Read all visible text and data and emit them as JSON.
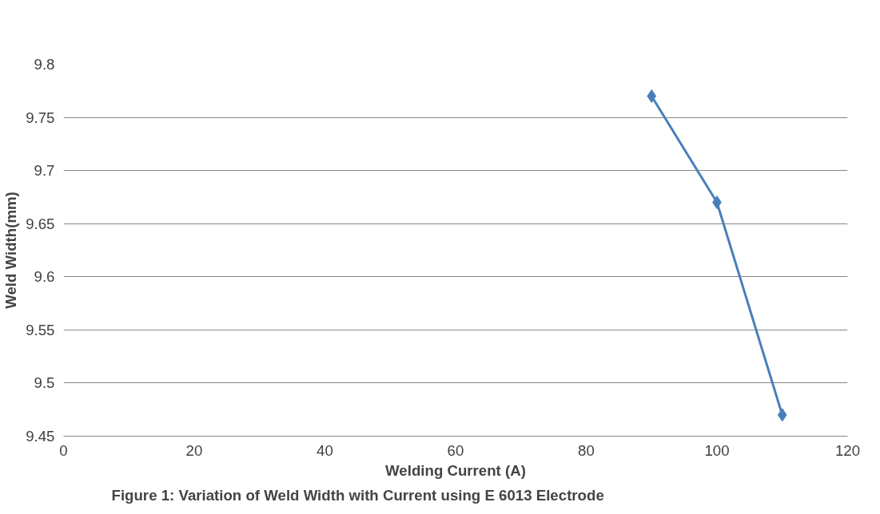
{
  "chart_data": {
    "type": "line",
    "xlabel": "Welding Current (A)",
    "ylabel": "Weld Width(mm)",
    "annotations": [
      "Figure 1:  Variation of Weld Width with Current using E 6013 Electrode"
    ],
    "x": [
      90,
      100,
      110
    ],
    "series": [
      {
        "color": "#4a7ebb",
        "values": [
          9.77,
          9.67,
          9.47
        ]
      }
    ],
    "xlim": [
      0,
      120
    ],
    "xticks": [
      0,
      20,
      40,
      60,
      80,
      100,
      120
    ],
    "ylim": [
      9.45,
      9.8
    ],
    "yticks": [
      9.45,
      9.5,
      9.55,
      9.6,
      9.65,
      9.7,
      9.75,
      9.8
    ],
    "grid": "y",
    "marker": "diamond",
    "line_style": "solid"
  }
}
